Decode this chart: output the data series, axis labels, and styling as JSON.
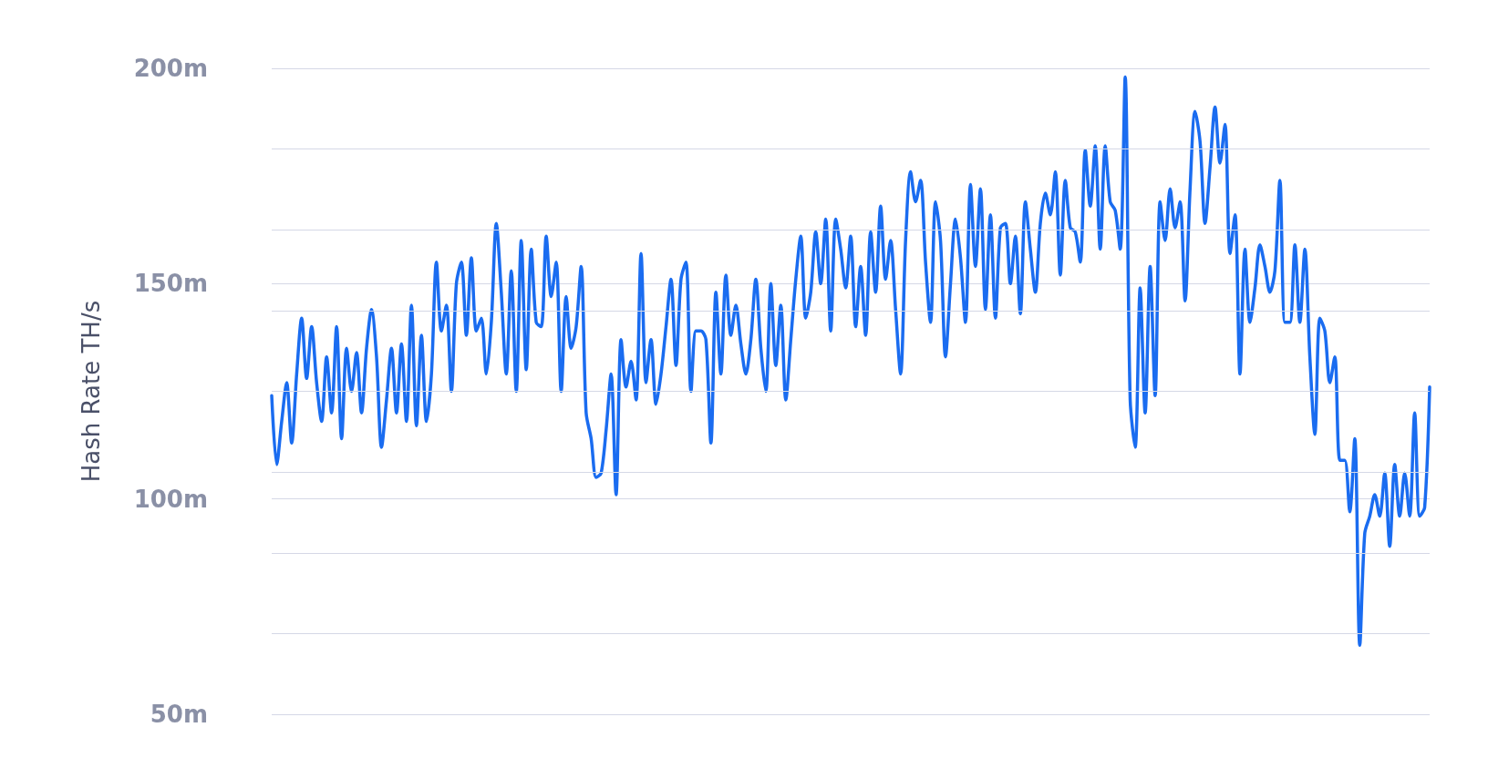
{
  "chart_data": {
    "type": "line",
    "ylabel": "Hash Rate TH/s",
    "categories": [
      null,
      null,
      null,
      null,
      null,
      null,
      null,
      null,
      null,
      null,
      null,
      null,
      null,
      null,
      null,
      null,
      null,
      null,
      null,
      null,
      null,
      null,
      null,
      null,
      null,
      null,
      null,
      null,
      null,
      null,
      null,
      null,
      null,
      null,
      null,
      null,
      null,
      null,
      null,
      null,
      null,
      null,
      null,
      null,
      null,
      null,
      null,
      null,
      null,
      null,
      null,
      null,
      null,
      null,
      null,
      null,
      null,
      null,
      null,
      null,
      null,
      null,
      null,
      null,
      null,
      null,
      null,
      null,
      null,
      null,
      null,
      null,
      null,
      null,
      null,
      null,
      null,
      null,
      null,
      null,
      null,
      null,
      null,
      null,
      null,
      null,
      null,
      null,
      null,
      null,
      null,
      null,
      null,
      null,
      null,
      null,
      null,
      null,
      null,
      null,
      null,
      null,
      null,
      null,
      null,
      null,
      null,
      null,
      null,
      null,
      null,
      null,
      null,
      null,
      null,
      null,
      null,
      null,
      null,
      null,
      null,
      null,
      null,
      null,
      null,
      null,
      null,
      null,
      null,
      null,
      null,
      null,
      null,
      null,
      null,
      null,
      null,
      null,
      null,
      null,
      null,
      null,
      null,
      null,
      null,
      null,
      null,
      null,
      null,
      null,
      null,
      null,
      null,
      null,
      null,
      null,
      null,
      null,
      null,
      null,
      null,
      null,
      null,
      null,
      null,
      null,
      null,
      null,
      null,
      null,
      null,
      null,
      null,
      null,
      null,
      null,
      null,
      null,
      null,
      null,
      null,
      null,
      null,
      null,
      null,
      null,
      null,
      null,
      null,
      null,
      null,
      null,
      null,
      null,
      null,
      null,
      null,
      null,
      null,
      null,
      null,
      null,
      null,
      null,
      null,
      null,
      null,
      null,
      null,
      null,
      null,
      null,
      null,
      null,
      null,
      null,
      null,
      null,
      null,
      null,
      null,
      null,
      null,
      null,
      null,
      null,
      null,
      null,
      null,
      null,
      null,
      null,
      null
    ],
    "series": [
      {
        "color": "#1a6cf0",
        "values": [
          124,
          108,
          118,
          127,
          113,
          129,
          142,
          128,
          140,
          127,
          118,
          133,
          120,
          140,
          114,
          135,
          125,
          134,
          120,
          135,
          144,
          133,
          112,
          123,
          135,
          120,
          136,
          118,
          145,
          117,
          138,
          118,
          129,
          155,
          139,
          145,
          125,
          150,
          155,
          138,
          156,
          139,
          142,
          129,
          141,
          164,
          148,
          129,
          153,
          125,
          160,
          130,
          158,
          141,
          140,
          161,
          147,
          155,
          125,
          147,
          135,
          140,
          154,
          120,
          114,
          105,
          106,
          116,
          129,
          101,
          137,
          126,
          132,
          123,
          157,
          127,
          137,
          122,
          129,
          140,
          151,
          131,
          151,
          155,
          125,
          139,
          139,
          137,
          113,
          148,
          129,
          152,
          138,
          145,
          136,
          129,
          137,
          151,
          135,
          125,
          150,
          131,
          145,
          123,
          137,
          151,
          161,
          142,
          148,
          162,
          150,
          165,
          139,
          165,
          158,
          149,
          161,
          140,
          154,
          138,
          162,
          148,
          168,
          151,
          160,
          144,
          129,
          160,
          176,
          169,
          174,
          155,
          141,
          169,
          160,
          133,
          150,
          165,
          156,
          141,
          173,
          154,
          172,
          144,
          166,
          142,
          163,
          164,
          150,
          161,
          143,
          169,
          158,
          148,
          164,
          171,
          166,
          176,
          152,
          174,
          163,
          162,
          155,
          181,
          168,
          182,
          158,
          182,
          169,
          167,
          158,
          198,
          123,
          112,
          149,
          120,
          154,
          124,
          169,
          160,
          172,
          163,
          169,
          146,
          172,
          190,
          183,
          164,
          177,
          191,
          178,
          187,
          157,
          166,
          129,
          158,
          141,
          149,
          159,
          154,
          148,
          153,
          174,
          141,
          141,
          159,
          141,
          158,
          133,
          115,
          142,
          139,
          127,
          133,
          109,
          109,
          97,
          114,
          66,
          92,
          96,
          101,
          96,
          106,
          89,
          108,
          96,
          106,
          96,
          120,
          96,
          98,
          126
        ]
      }
    ],
    "ylim": [
      50,
      200
    ],
    "yticks": [
      {
        "value": 50,
        "label": "50m"
      },
      {
        "value": 68.75,
        "label": null
      },
      {
        "value": 87.5,
        "label": null
      },
      {
        "value": 100,
        "label": "100m"
      },
      {
        "value": 106.25,
        "label": null
      },
      {
        "value": 125,
        "label": null
      },
      {
        "value": 143.75,
        "label": null
      },
      {
        "value": 150,
        "label": "150m"
      },
      {
        "value": 162.5,
        "label": null
      },
      {
        "value": 181.25,
        "label": null
      },
      {
        "value": 200,
        "label": "200m"
      }
    ],
    "grid": "y",
    "line_style": "solid",
    "tick_labels": "y"
  }
}
